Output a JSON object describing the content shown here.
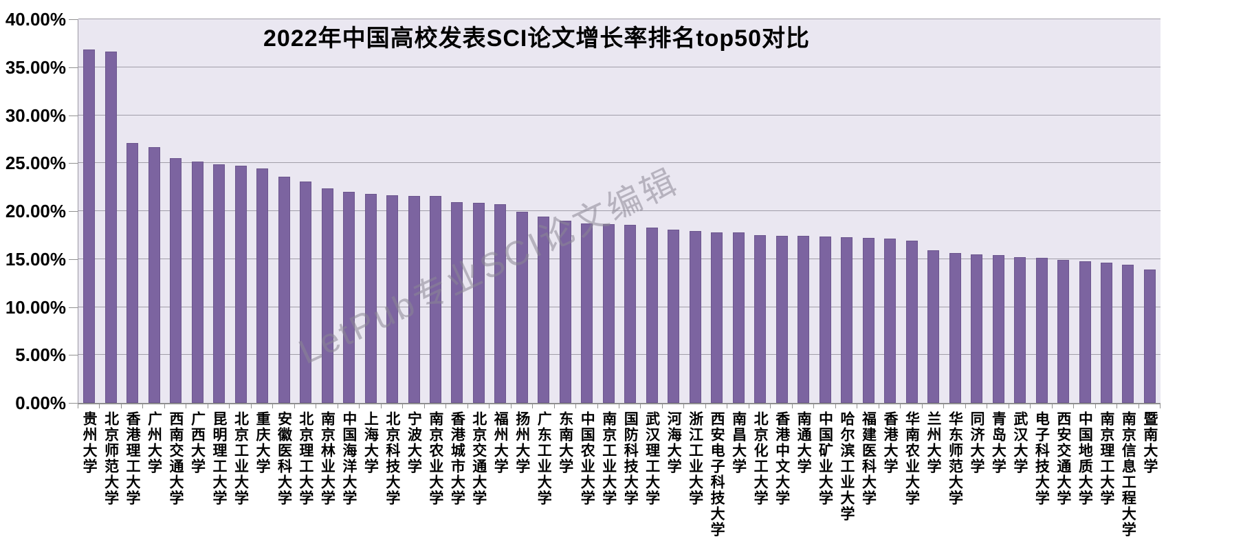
{
  "chart_data": {
    "type": "bar",
    "title": "2022年中国高校发表SCI论文增长率排名top50对比",
    "categories": [
      "贵州大学",
      "北京师范大学",
      "香港理工大学",
      "广州大学",
      "西南交通大学",
      "广西大学",
      "昆明理工大学",
      "北京工业大学",
      "重庆大学",
      "安徽医科大学",
      "北京理工大学",
      "南京林业大学",
      "中国海洋大学",
      "上海大学",
      "北京科技大学",
      "宁波大学",
      "南京农业大学",
      "香港城市大学",
      "北京交通大学",
      "福州大学",
      "扬州大学",
      "广东工业大学",
      "东南大学",
      "中国农业大学",
      "南京工业大学",
      "国防科技大学",
      "武汉理工大学",
      "河海大学",
      "浙江工业大学",
      "西安电子科技大学",
      "南昌大学",
      "北京化工大学",
      "香港中文大学",
      "南通大学",
      "中国矿业大学",
      "哈尔滨工业大学",
      "福建医科大学",
      "香港大学",
      "华南农业大学",
      "兰州大学",
      "华东师范大学",
      "同济大学",
      "青岛大学",
      "武汉大学",
      "电子科技大学",
      "西安交通大学",
      "中国地质大学",
      "南京理工大学",
      "南京信息工程大学",
      "暨南大学"
    ],
    "values": [
      36.85,
      36.6,
      27.1,
      26.7,
      25.5,
      25.15,
      24.85,
      24.7,
      24.45,
      23.6,
      23.05,
      22.35,
      22.0,
      21.8,
      21.65,
      21.6,
      21.55,
      20.9,
      20.85,
      20.75,
      19.9,
      19.45,
      19.0,
      18.7,
      18.65,
      18.55,
      18.3,
      18.1,
      17.9,
      17.8,
      17.75,
      17.5,
      17.4,
      17.4,
      17.35,
      17.25,
      17.2,
      17.15,
      16.9,
      15.9,
      15.6,
      15.5,
      15.4,
      15.2,
      15.1,
      14.9,
      14.8,
      14.6,
      14.4,
      13.9
    ],
    "xlabel": "",
    "ylabel": "",
    "ylim": [
      0,
      40
    ],
    "y_tick_step": 5,
    "y_tick_labels": [
      "0.00%",
      "5.00%",
      "10.00%",
      "15.00%",
      "20.00%",
      "25.00%",
      "30.00%",
      "35.00%",
      "40.00%"
    ],
    "grid": "horizontal",
    "legend_position": "none",
    "bar_color": "#7C64A0",
    "plot_background": "#EAE7F1",
    "watermark": "LetPub专业SCI论文编辑"
  }
}
